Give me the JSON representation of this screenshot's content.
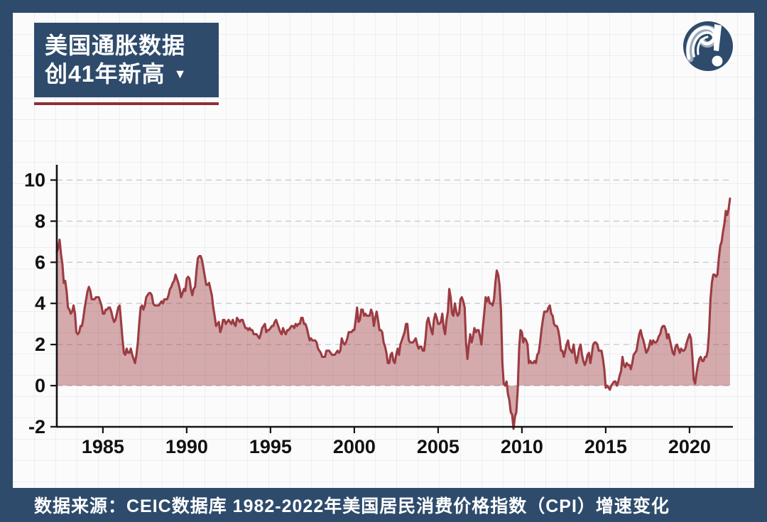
{
  "header": {
    "title_line1": "美国通胀数据",
    "title_line2": "创41年新高",
    "dropdown_icon": "▼"
  },
  "footer": {
    "source_text": "数据来源：CEIC数据库 1982-2022年美国居民消费价格指数（CPI）增速变化"
  },
  "colors": {
    "navy": "#2e4b6c",
    "title_underline_red": "#8e2f36",
    "line_maroon": "#9c3c42",
    "area_fill": "rgba(158,57,63,0.42)",
    "axis_black": "#141414",
    "gridline_gray": "#c9ccd1"
  },
  "chart_data": {
    "type": "area",
    "title": "",
    "xlabel": "",
    "ylabel": "",
    "x_ticks": [
      1985,
      1990,
      1995,
      2000,
      2005,
      2010,
      2015,
      2020
    ],
    "y_ticks": [
      -2,
      0,
      2,
      4,
      6,
      8,
      10
    ],
    "xlim": [
      1982.25,
      2022.6
    ],
    "ylim": [
      -2,
      10.7
    ],
    "grid": "dashed-horizontal",
    "legend": false,
    "series": [
      {
        "name": "美国居民消费价格指数（CPI）同比增速 %",
        "frequency": "monthly",
        "start": {
          "year": 1982,
          "month": 4
        },
        "values_by_year": {
          "1982": [
            6.5,
            6.7,
            7.1,
            6.4,
            5.9,
            5.0,
            5.1,
            4.6,
            3.8
          ],
          "1983": [
            3.7,
            3.5,
            3.6,
            3.9,
            3.5,
            2.6,
            2.5,
            2.6,
            2.9,
            2.9,
            3.3,
            3.8
          ],
          "1984": [
            4.2,
            4.6,
            4.8,
            4.6,
            4.2,
            4.2,
            4.2,
            4.3,
            4.3,
            4.3,
            4.1,
            3.9
          ],
          "1985": [
            3.5,
            3.5,
            3.7,
            3.7,
            3.8,
            3.8,
            3.6,
            3.3,
            3.1,
            3.2,
            3.5,
            3.8
          ],
          "1986": [
            3.9,
            3.1,
            2.3,
            1.6,
            1.5,
            1.8,
            1.6,
            1.6,
            1.8,
            1.5,
            1.3,
            1.1
          ],
          "1987": [
            1.5,
            2.1,
            3.0,
            3.8,
            3.9,
            3.7,
            3.9,
            4.3,
            4.4,
            4.5,
            4.5,
            4.4
          ],
          "1988": [
            4.0,
            3.9,
            3.9,
            3.9,
            3.9,
            4.0,
            4.1,
            4.0,
            4.2,
            4.2,
            4.2,
            4.4
          ],
          "1989": [
            4.7,
            4.8,
            5.0,
            5.1,
            5.4,
            5.2,
            5.0,
            4.7,
            4.3,
            4.5,
            4.7,
            4.6
          ],
          "1990": [
            5.2,
            5.3,
            5.2,
            4.7,
            4.4,
            4.7,
            4.8,
            5.6,
            6.2,
            6.3,
            6.3,
            6.1
          ],
          "1991": [
            5.7,
            5.3,
            4.9,
            4.9,
            5.0,
            4.7,
            4.4,
            3.8,
            3.4,
            2.9,
            3.0,
            3.1
          ],
          "1992": [
            2.6,
            2.8,
            3.2,
            3.2,
            3.0,
            3.1,
            3.2,
            3.1,
            3.0,
            3.2,
            3.0,
            2.9
          ],
          "1993": [
            3.3,
            3.2,
            3.1,
            3.2,
            3.2,
            3.0,
            2.8,
            2.8,
            2.7,
            2.8,
            2.7,
            2.7
          ],
          "1994": [
            2.5,
            2.5,
            2.5,
            2.4,
            2.3,
            2.5,
            2.8,
            2.9,
            3.0,
            2.6,
            2.7,
            2.7
          ],
          "1995": [
            2.8,
            2.9,
            2.9,
            3.1,
            3.2,
            3.0,
            2.8,
            2.6,
            2.5,
            2.8,
            2.6,
            2.5
          ],
          "1996": [
            2.7,
            2.7,
            2.8,
            2.9,
            2.9,
            2.8,
            3.0,
            2.9,
            3.0,
            3.0,
            3.3,
            3.3
          ],
          "1997": [
            3.0,
            3.0,
            2.8,
            2.5,
            2.2,
            2.3,
            2.2,
            2.2,
            2.2,
            2.1,
            1.8,
            1.7
          ],
          "1998": [
            1.6,
            1.4,
            1.4,
            1.4,
            1.7,
            1.7,
            1.7,
            1.6,
            1.5,
            1.5,
            1.5,
            1.6
          ],
          "1999": [
            1.7,
            1.6,
            1.7,
            2.3,
            2.1,
            2.0,
            2.1,
            2.3,
            2.6,
            2.6,
            2.6,
            2.7
          ],
          "2000": [
            2.7,
            3.2,
            3.8,
            3.1,
            3.2,
            3.7,
            3.7,
            3.4,
            3.5,
            3.4,
            3.4,
            3.4
          ],
          "2001": [
            3.7,
            3.5,
            2.9,
            3.3,
            3.6,
            3.2,
            2.7,
            2.7,
            2.6,
            2.1,
            1.9,
            1.6
          ],
          "2002": [
            1.1,
            1.1,
            1.5,
            1.6,
            1.2,
            1.1,
            1.5,
            1.8,
            1.5,
            2.0,
            2.2,
            2.4
          ],
          "2003": [
            2.6,
            3.0,
            3.0,
            2.2,
            2.1,
            2.1,
            2.1,
            2.2,
            2.3,
            2.0,
            1.8,
            1.9
          ],
          "2004": [
            1.9,
            1.7,
            1.7,
            2.3,
            3.1,
            3.3,
            3.0,
            2.7,
            2.5,
            3.2,
            3.5,
            3.3
          ],
          "2005": [
            3.0,
            3.0,
            3.1,
            3.5,
            2.8,
            2.5,
            3.2,
            3.6,
            4.7,
            4.3,
            3.5,
            3.4
          ],
          "2006": [
            4.0,
            3.6,
            3.4,
            3.5,
            4.2,
            4.3,
            4.1,
            3.8,
            2.1,
            1.3,
            2.0,
            2.5
          ],
          "2007": [
            2.1,
            2.4,
            2.8,
            2.6,
            2.7,
            2.7,
            2.4,
            2.0,
            2.8,
            3.5,
            4.3,
            4.1
          ],
          "2008": [
            4.3,
            4.0,
            4.0,
            3.9,
            4.2,
            5.0,
            5.6,
            5.4,
            4.9,
            3.7,
            1.1,
            0.1
          ],
          "2009": [
            0.0,
            0.2,
            -0.4,
            -0.7,
            -1.3,
            -1.4,
            -2.1,
            -1.5,
            -1.3,
            -0.2,
            1.8,
            2.7
          ],
          "2010": [
            2.6,
            2.1,
            2.3,
            2.2,
            2.0,
            1.1,
            1.2,
            1.1,
            1.1,
            1.2,
            1.1,
            1.5
          ],
          "2011": [
            1.6,
            2.1,
            2.7,
            3.2,
            3.6,
            3.6,
            3.6,
            3.8,
            3.9,
            3.5,
            3.4,
            3.0
          ],
          "2012": [
            2.9,
            2.9,
            2.7,
            2.3,
            1.7,
            1.7,
            1.4,
            1.7,
            2.0,
            2.2,
            1.8,
            1.7
          ],
          "2013": [
            1.6,
            2.0,
            1.5,
            1.1,
            1.4,
            1.8,
            2.0,
            1.5,
            1.2,
            1.0,
            1.2,
            1.5
          ],
          "2014": [
            1.6,
            1.1,
            1.5,
            2.0,
            2.1,
            2.1,
            2.0,
            1.7,
            1.7,
            1.7,
            1.3,
            0.8
          ],
          "2015": [
            -0.1,
            0.0,
            -0.1,
            -0.2,
            0.0,
            0.1,
            0.2,
            0.2,
            0.0,
            0.2,
            0.5,
            0.7
          ],
          "2016": [
            1.4,
            1.0,
            0.9,
            1.1,
            1.0,
            1.0,
            0.8,
            1.1,
            1.5,
            1.6,
            1.7,
            2.1
          ],
          "2017": [
            2.5,
            2.7,
            2.4,
            2.2,
            1.9,
            1.6,
            1.7,
            1.9,
            2.2,
            2.0,
            2.2,
            2.1
          ],
          "2018": [
            2.1,
            2.2,
            2.4,
            2.5,
            2.8,
            2.9,
            2.9,
            2.7,
            2.3,
            2.5,
            2.2,
            1.9
          ],
          "2019": [
            1.6,
            1.5,
            1.9,
            2.0,
            1.8,
            1.6,
            1.8,
            1.7,
            1.7,
            1.8,
            2.1,
            2.3
          ],
          "2020": [
            2.5,
            2.3,
            1.5,
            0.3,
            0.1,
            0.6,
            1.0,
            1.3,
            1.4,
            1.2,
            1.2,
            1.4
          ],
          "2021": [
            1.4,
            1.7,
            2.6,
            4.2,
            5.0,
            5.4,
            5.4,
            5.3,
            5.4,
            6.2,
            6.8,
            7.0
          ],
          "2022": [
            7.5,
            7.9,
            8.5,
            8.3,
            8.6,
            9.1
          ]
        }
      }
    ]
  }
}
